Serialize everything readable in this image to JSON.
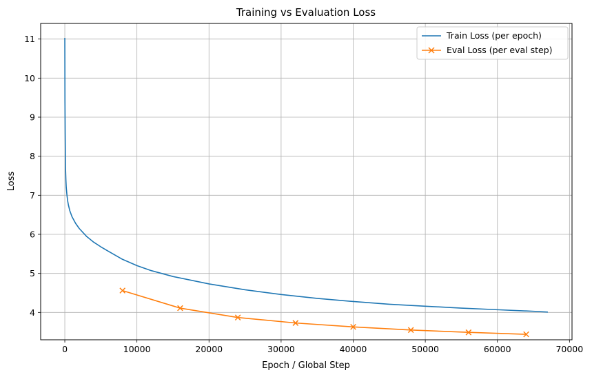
{
  "chart_data": {
    "type": "line",
    "title": "Training vs Evaluation Loss",
    "xlabel": "Epoch / Global Step",
    "ylabel": "Loss",
    "xlim": [
      -3350,
      70350
    ],
    "ylim": [
      3.3,
      11.4
    ],
    "xticks": [
      0,
      10000,
      20000,
      30000,
      40000,
      50000,
      60000,
      70000
    ],
    "yticks": [
      4,
      5,
      6,
      7,
      8,
      9,
      10,
      11
    ],
    "grid": true,
    "legend_position": "top-right",
    "series": [
      {
        "name": "Train Loss (per epoch)",
        "color": "#1f77b4",
        "marker": "none",
        "x": [
          0,
          20,
          50,
          100,
          150,
          200,
          300,
          400,
          500,
          700,
          1000,
          1500,
          2000,
          3000,
          4000,
          5000,
          6000,
          8000,
          10000,
          12000,
          15000,
          20000,
          25000,
          30000,
          35000,
          40000,
          45000,
          50000,
          55000,
          60000,
          65000,
          67000
        ],
        "y": [
          11.03,
          9.4,
          8.6,
          7.7,
          7.4,
          7.2,
          7.0,
          6.85,
          6.75,
          6.6,
          6.45,
          6.28,
          6.15,
          5.95,
          5.8,
          5.68,
          5.57,
          5.36,
          5.2,
          5.07,
          4.92,
          4.73,
          4.58,
          4.46,
          4.36,
          4.28,
          4.21,
          4.16,
          4.11,
          4.07,
          4.03,
          4.01
        ]
      },
      {
        "name": "Eval Loss (per eval step)",
        "color": "#ff7f0e",
        "marker": "x",
        "x": [
          8000,
          16000,
          24000,
          32000,
          40000,
          48000,
          56000,
          64000
        ],
        "y": [
          4.56,
          4.11,
          3.87,
          3.73,
          3.63,
          3.55,
          3.49,
          3.44
        ]
      }
    ]
  }
}
